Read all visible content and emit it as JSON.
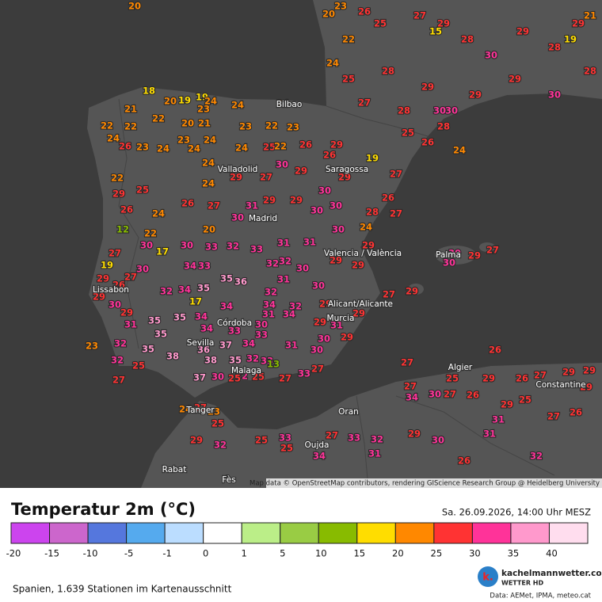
{
  "header": {
    "title": "Temperatur 2m (°C)",
    "timestamp": "Sa. 26.09.2026, 14:00 Uhr MESZ"
  },
  "map": {
    "attribution": "Map data © OpenStreetMap contributors, rendering GIScience Research Group @ Heidelberg University",
    "cities": [
      "Bilbao",
      "Valladolid",
      "Saragossa",
      "Madrid",
      "Lissabon",
      "Valencia / València",
      "Palma",
      "Alicant/Alicante",
      "Murcia",
      "Córdoba",
      "Sevilla",
      "Malaga",
      "Algier",
      "Constantine",
      "Oran",
      "Oujda",
      "Rabat",
      "Fès",
      "Tanger"
    ],
    "stations": [
      20,
      18,
      19,
      20,
      19,
      24,
      21,
      23,
      22,
      20,
      21,
      22,
      22,
      24,
      23,
      22,
      23,
      24,
      23,
      24,
      24,
      25,
      22,
      26,
      29,
      24,
      24,
      26,
      23,
      24,
      29,
      27,
      30,
      29,
      26,
      29,
      30,
      30,
      30,
      29,
      29,
      31,
      30,
      27,
      26,
      24,
      20,
      30,
      33,
      32,
      33,
      31,
      31,
      30,
      24,
      29,
      29,
      29,
      30,
      31,
      32,
      32,
      35,
      36,
      35,
      34,
      33,
      32,
      34,
      17,
      34,
      34,
      32,
      32,
      30,
      29,
      29,
      27,
      29,
      31,
      34,
      29,
      31,
      30,
      34,
      35,
      34,
      35,
      35,
      33,
      33,
      37,
      34,
      31,
      30,
      29,
      30,
      23,
      32,
      35,
      38,
      36,
      38,
      35,
      32,
      33,
      13,
      32,
      30,
      37,
      25,
      25,
      27,
      33,
      27,
      24,
      27,
      23,
      25,
      29,
      32,
      25,
      33,
      25,
      34,
      27,
      33,
      32,
      31,
      29,
      30,
      26,
      32,
      31,
      31,
      26,
      27,
      25,
      29,
      26,
      27,
      29,
      29,
      29,
      26,
      27,
      30,
      34,
      27,
      27,
      25,
      29,
      26,
      29,
      27,
      30,
      30,
      23,
      20,
      26,
      22,
      25,
      27,
      29,
      28,
      30,
      29,
      28,
      29,
      28,
      30,
      29,
      29,
      30,
      29,
      28,
      28,
      27,
      25,
      24,
      19,
      25,
      26,
      28,
      24,
      27,
      26,
      28,
      27,
      30,
      15,
      19,
      21,
      29,
      26,
      25,
      24,
      22,
      12,
      27,
      19,
      29,
      26,
      27,
      30,
      30,
      17,
      29,
      30,
      29,
      31,
      32,
      25,
      27,
      24,
      22
    ]
  },
  "legend": {
    "labels": [
      -20,
      -15,
      -10,
      -5,
      -1,
      0,
      1,
      5,
      10,
      15,
      20,
      25,
      30,
      35,
      40
    ],
    "colors": [
      "#cc44ee",
      "#cc66cc",
      "#5577dd",
      "#55aaee",
      "#bbddff",
      "#ffffff",
      "#bbee88",
      "#99cc44",
      "#88bb00",
      "#ffdd00",
      "#ff8800",
      "#ff3333",
      "#ff3399",
      "#ff99cc",
      "#ffddee"
    ]
  },
  "footer": {
    "stations_note": "Spanien, 1.639 Stationen im Kartenausschnitt",
    "logo_text": "k.",
    "brand": "kachelmannwetter.com",
    "brand_sub": "WETTER HD",
    "sources": "Data: AEMet, IPMA, meteo.cat"
  }
}
